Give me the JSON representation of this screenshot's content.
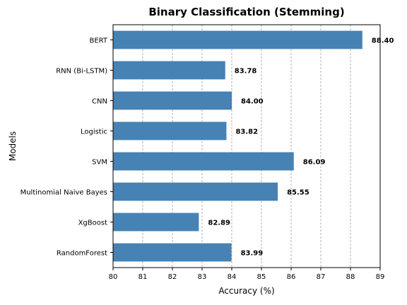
{
  "chart_data": {
    "type": "bar",
    "orientation": "horizontal",
    "title": "Binary Classification (Stemming)",
    "xlabel": "Accuracy (%)",
    "ylabel": "Models",
    "xlim": [
      80,
      89
    ],
    "xticks": [
      80,
      81,
      82,
      83,
      84,
      85,
      86,
      87,
      88,
      89
    ],
    "grid": "x-dashed",
    "bar_color": "#4682b4",
    "categories": [
      "BERT",
      "RNN (Bi-LSTM)",
      "CNN",
      "Logistic",
      "SVM",
      "Multinomial Naive Bayes",
      "XgBoost",
      "RandomForest"
    ],
    "values": [
      88.4,
      83.78,
      84.0,
      83.82,
      86.09,
      85.55,
      82.89,
      83.99
    ],
    "value_labels": [
      "88.40",
      "83.78",
      "84.00",
      "83.82",
      "86.09",
      "85.55",
      "82.89",
      "83.99"
    ]
  }
}
